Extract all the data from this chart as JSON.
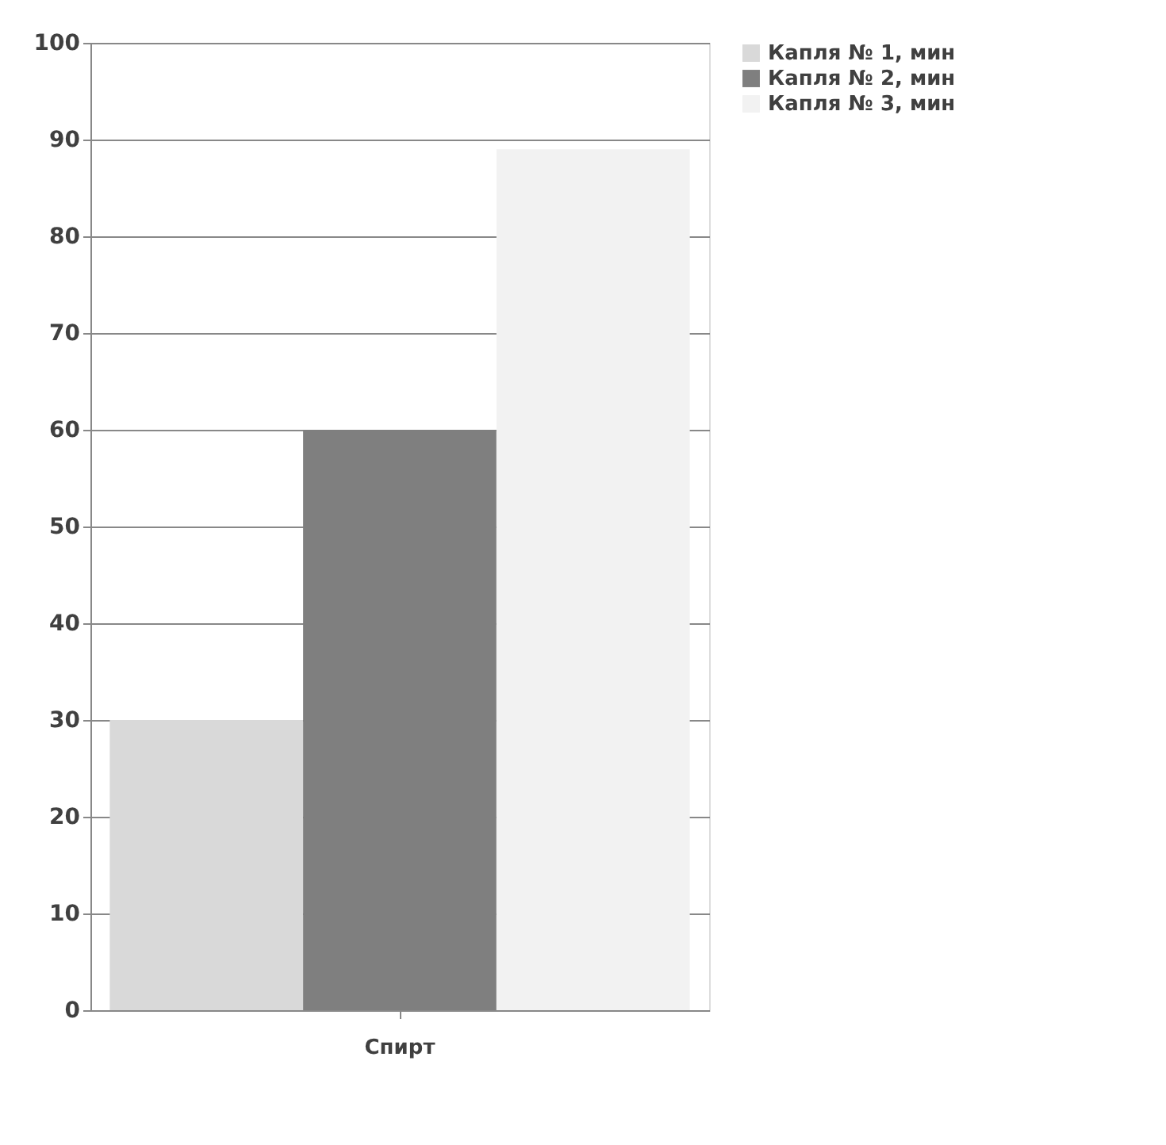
{
  "chart_data": {
    "type": "bar",
    "categories": [
      "Спирт"
    ],
    "series": [
      {
        "name": "Капля № 1, мин",
        "color": "#d9d9d9",
        "values": [
          30
        ]
      },
      {
        "name": "Капля № 2, мин",
        "color": "#7f7f7f",
        "values": [
          60
        ]
      },
      {
        "name": "Капля № 3, мин",
        "color": "#f2f2f2",
        "values": [
          89
        ]
      }
    ],
    "ylim": [
      0,
      100
    ],
    "yticks": [
      0,
      10,
      20,
      30,
      40,
      50,
      60,
      70,
      80,
      90,
      100
    ],
    "grid": "y",
    "legend": "right"
  }
}
